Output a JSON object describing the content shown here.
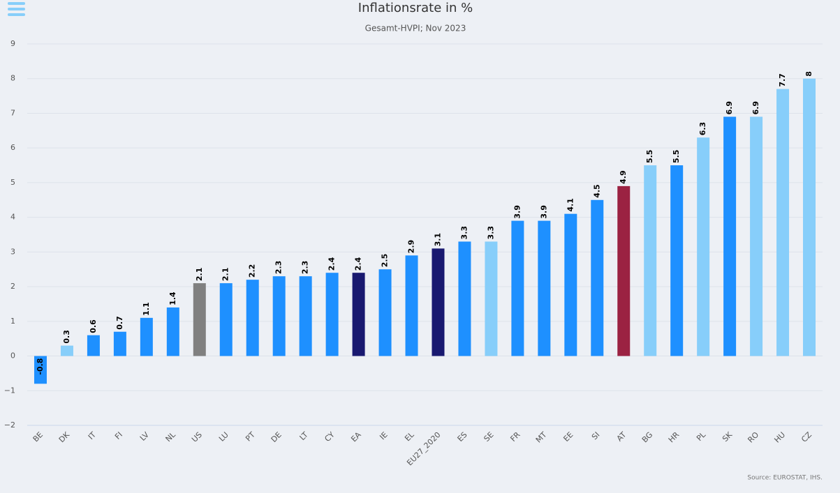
{
  "chart_data": {
    "type": "bar",
    "title": "Inflationsrate in %",
    "subtitle": "Gesamt-HVPI; Nov 2023",
    "source": "Source: EUROSTAT, IHS.",
    "categories": [
      "BE",
      "DK",
      "IT",
      "FI",
      "LV",
      "NL",
      "US",
      "LU",
      "PT",
      "DE",
      "LT",
      "CY",
      "EA",
      "IE",
      "EL",
      "EU27_2020",
      "ES",
      "SE",
      "FR",
      "MT",
      "EE",
      "SI",
      "AT",
      "BG",
      "HR",
      "PL",
      "SK",
      "RO",
      "HU",
      "CZ"
    ],
    "values": [
      -0.8,
      0.3,
      0.6,
      0.7,
      1.1,
      1.4,
      2.1,
      2.1,
      2.2,
      2.3,
      2.3,
      2.4,
      2.4,
      2.5,
      2.9,
      3.1,
      3.3,
      3.3,
      3.9,
      3.9,
      4.1,
      4.5,
      4.9,
      5.5,
      5.5,
      6.3,
      6.9,
      6.9,
      7.7,
      8
    ],
    "colors": [
      "#1e90ff",
      "#87cefa",
      "#1e90ff",
      "#1e90ff",
      "#1e90ff",
      "#1e90ff",
      "#808080",
      "#1e90ff",
      "#1e90ff",
      "#1e90ff",
      "#1e90ff",
      "#1e90ff",
      "#191970",
      "#1e90ff",
      "#1e90ff",
      "#191970",
      "#1e90ff",
      "#87cefa",
      "#1e90ff",
      "#1e90ff",
      "#1e90ff",
      "#1e90ff",
      "#9b2242",
      "#87cefa",
      "#1e90ff",
      "#87cefa",
      "#1e90ff",
      "#87cefa",
      "#87cefa",
      "#87cefa"
    ],
    "ylim": [
      -2,
      9
    ],
    "yticks": [
      {
        "value": -2,
        "label": "−2"
      },
      {
        "value": -1,
        "label": "−1"
      },
      0,
      1,
      2,
      3,
      4,
      5,
      6,
      7,
      8,
      9
    ],
    "grid": true
  }
}
